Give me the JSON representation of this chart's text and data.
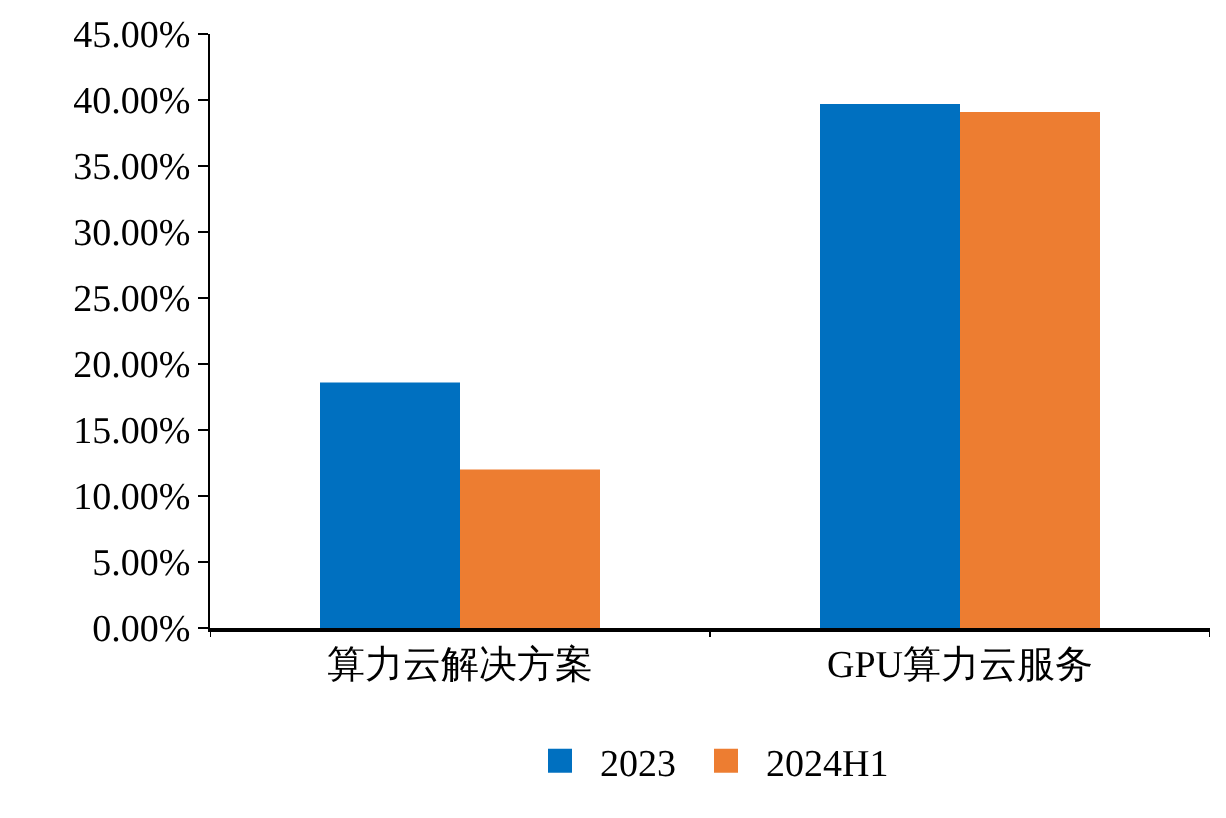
{
  "chart_data": {
    "type": "bar",
    "categories": [
      "算力云解决方案",
      "GPU算力云服务"
    ],
    "series": [
      {
        "name": "2023",
        "color": "#0070c0",
        "values": [
          18.6,
          39.7
        ]
      },
      {
        "name": "2024H1",
        "color": "#ed7d31",
        "values": [
          12.0,
          39.1
        ]
      }
    ],
    "ylim": [
      0,
      45
    ],
    "yticks": [
      {
        "value": 0,
        "label": "0.00%"
      },
      {
        "value": 5,
        "label": "5.00%"
      },
      {
        "value": 10,
        "label": "10.00%"
      },
      {
        "value": 15,
        "label": "15.00%"
      },
      {
        "value": 20,
        "label": "20.00%"
      },
      {
        "value": 25,
        "label": "25.00%"
      },
      {
        "value": 30,
        "label": "30.00%"
      },
      {
        "value": 35,
        "label": "35.00%"
      },
      {
        "value": 40,
        "label": "40.00%"
      },
      {
        "value": 45,
        "label": "45.00%"
      }
    ],
    "legend": "bottom"
  }
}
